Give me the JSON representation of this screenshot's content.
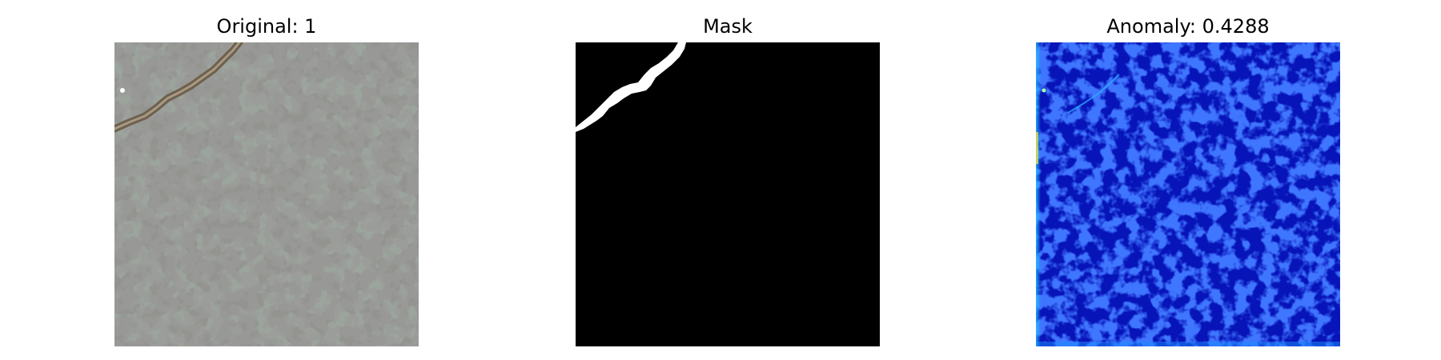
{
  "figure": {
    "panels": [
      {
        "title": "Original: 1",
        "image_description": "grey speckled stone tile texture with a brown diagonal crack near the top-left"
      },
      {
        "title": "Mask",
        "image_description": "black ground-truth mask with a white crack region in the top-left"
      },
      {
        "title": "Anomaly: 0.4288",
        "image_description": "blue jet-colormap anomaly heatmap with faint cyan edge along the crack"
      }
    ]
  },
  "colors": {
    "tile_base": "#9aa39b",
    "tile_speckle": "#4b4a47",
    "crack": "#7a6b55",
    "mask_background": "#000000",
    "mask_foreground": "#ffffff",
    "heatmap_base": "#0a16c8",
    "heatmap_high": "#3fd8ff"
  }
}
